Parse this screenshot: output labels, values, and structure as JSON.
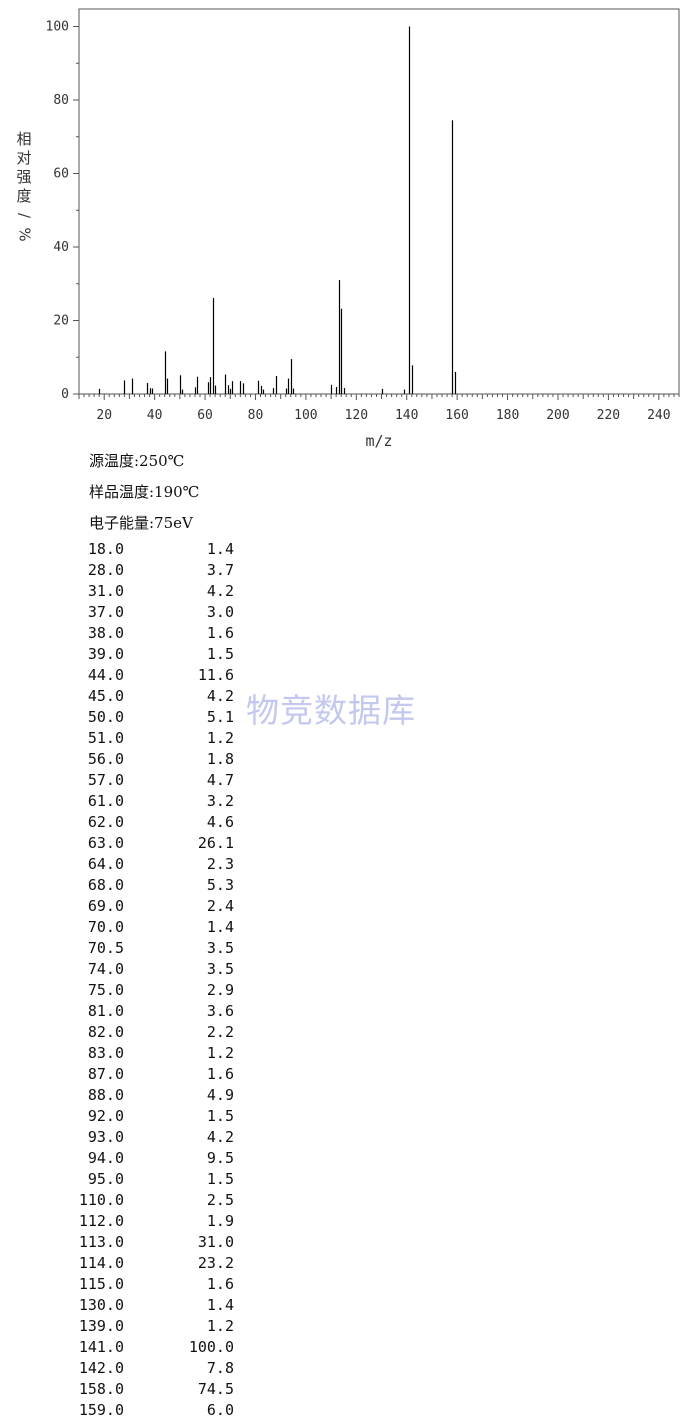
{
  "chart_data": {
    "type": "bar",
    "xlabel": "m/z",
    "ylabel_chars": [
      "相",
      "对",
      "强",
      "度",
      "/",
      "%"
    ],
    "xlim": [
      10,
      248
    ],
    "ylim": [
      0,
      104
    ],
    "x_ticks": [
      20,
      40,
      60,
      80,
      100,
      120,
      140,
      160,
      180,
      200,
      220,
      240
    ],
    "y_ticks": [
      0,
      20,
      40,
      60,
      80,
      100
    ],
    "peaks": [
      {
        "mz": 18.0,
        "intensity": 1.4
      },
      {
        "mz": 28.0,
        "intensity": 3.7
      },
      {
        "mz": 31.0,
        "intensity": 4.2
      },
      {
        "mz": 37.0,
        "intensity": 3.0
      },
      {
        "mz": 38.0,
        "intensity": 1.6
      },
      {
        "mz": 39.0,
        "intensity": 1.5
      },
      {
        "mz": 44.0,
        "intensity": 11.6
      },
      {
        "mz": 45.0,
        "intensity": 4.2
      },
      {
        "mz": 50.0,
        "intensity": 5.1
      },
      {
        "mz": 51.0,
        "intensity": 1.2
      },
      {
        "mz": 56.0,
        "intensity": 1.8
      },
      {
        "mz": 57.0,
        "intensity": 4.7
      },
      {
        "mz": 61.0,
        "intensity": 3.2
      },
      {
        "mz": 62.0,
        "intensity": 4.6
      },
      {
        "mz": 63.0,
        "intensity": 26.1
      },
      {
        "mz": 64.0,
        "intensity": 2.3
      },
      {
        "mz": 68.0,
        "intensity": 5.3
      },
      {
        "mz": 69.0,
        "intensity": 2.4
      },
      {
        "mz": 70.0,
        "intensity": 1.4
      },
      {
        "mz": 70.5,
        "intensity": 3.5
      },
      {
        "mz": 74.0,
        "intensity": 3.5
      },
      {
        "mz": 75.0,
        "intensity": 2.9
      },
      {
        "mz": 81.0,
        "intensity": 3.6
      },
      {
        "mz": 82.0,
        "intensity": 2.2
      },
      {
        "mz": 83.0,
        "intensity": 1.2
      },
      {
        "mz": 87.0,
        "intensity": 1.6
      },
      {
        "mz": 88.0,
        "intensity": 4.9
      },
      {
        "mz": 92.0,
        "intensity": 1.5
      },
      {
        "mz": 93.0,
        "intensity": 4.2
      },
      {
        "mz": 94.0,
        "intensity": 9.5
      },
      {
        "mz": 95.0,
        "intensity": 1.5
      },
      {
        "mz": 110.0,
        "intensity": 2.5
      },
      {
        "mz": 112.0,
        "intensity": 1.9
      },
      {
        "mz": 113.0,
        "intensity": 31.0
      },
      {
        "mz": 114.0,
        "intensity": 23.2
      },
      {
        "mz": 115.0,
        "intensity": 1.6
      },
      {
        "mz": 130.0,
        "intensity": 1.4
      },
      {
        "mz": 139.0,
        "intensity": 1.2
      },
      {
        "mz": 141.0,
        "intensity": 100.0
      },
      {
        "mz": 142.0,
        "intensity": 7.8
      },
      {
        "mz": 158.0,
        "intensity": 74.5
      },
      {
        "mz": 159.0,
        "intensity": 6.0
      }
    ],
    "bar_color": "#000000",
    "axis_color": "#555555"
  },
  "conditions": {
    "source_temp": "源温度:250℃",
    "sample_temp": "样品温度:190℃",
    "electron_energy": "电子能量:75eV"
  },
  "table": {
    "rows": [
      {
        "mz": "18.0",
        "intensity": "1.4"
      },
      {
        "mz": "28.0",
        "intensity": "3.7"
      },
      {
        "mz": "31.0",
        "intensity": "4.2"
      },
      {
        "mz": "37.0",
        "intensity": "3.0"
      },
      {
        "mz": "38.0",
        "intensity": "1.6"
      },
      {
        "mz": "39.0",
        "intensity": "1.5"
      },
      {
        "mz": "44.0",
        "intensity": "11.6"
      },
      {
        "mz": "45.0",
        "intensity": "4.2"
      },
      {
        "mz": "50.0",
        "intensity": "5.1"
      },
      {
        "mz": "51.0",
        "intensity": "1.2"
      },
      {
        "mz": "56.0",
        "intensity": "1.8"
      },
      {
        "mz": "57.0",
        "intensity": "4.7"
      },
      {
        "mz": "61.0",
        "intensity": "3.2"
      },
      {
        "mz": "62.0",
        "intensity": "4.6"
      },
      {
        "mz": "63.0",
        "intensity": "26.1"
      },
      {
        "mz": "64.0",
        "intensity": "2.3"
      },
      {
        "mz": "68.0",
        "intensity": "5.3"
      },
      {
        "mz": "69.0",
        "intensity": "2.4"
      },
      {
        "mz": "70.0",
        "intensity": "1.4"
      },
      {
        "mz": "70.5",
        "intensity": "3.5"
      },
      {
        "mz": "74.0",
        "intensity": "3.5"
      },
      {
        "mz": "75.0",
        "intensity": "2.9"
      },
      {
        "mz": "81.0",
        "intensity": "3.6"
      },
      {
        "mz": "82.0",
        "intensity": "2.2"
      },
      {
        "mz": "83.0",
        "intensity": "1.2"
      },
      {
        "mz": "87.0",
        "intensity": "1.6"
      },
      {
        "mz": "88.0",
        "intensity": "4.9"
      },
      {
        "mz": "92.0",
        "intensity": "1.5"
      },
      {
        "mz": "93.0",
        "intensity": "4.2"
      },
      {
        "mz": "94.0",
        "intensity": "9.5"
      },
      {
        "mz": "95.0",
        "intensity": "1.5"
      },
      {
        "mz": "110.0",
        "intensity": "2.5"
      },
      {
        "mz": "112.0",
        "intensity": "1.9"
      },
      {
        "mz": "113.0",
        "intensity": "31.0"
      },
      {
        "mz": "114.0",
        "intensity": "23.2"
      },
      {
        "mz": "115.0",
        "intensity": "1.6"
      },
      {
        "mz": "130.0",
        "intensity": "1.4"
      },
      {
        "mz": "139.0",
        "intensity": "1.2"
      },
      {
        "mz": "141.0",
        "intensity": "100.0"
      },
      {
        "mz": "142.0",
        "intensity": "7.8"
      },
      {
        "mz": "158.0",
        "intensity": "74.5"
      },
      {
        "mz": "159.0",
        "intensity": "6.0"
      }
    ]
  },
  "watermark": "物竞数据库"
}
